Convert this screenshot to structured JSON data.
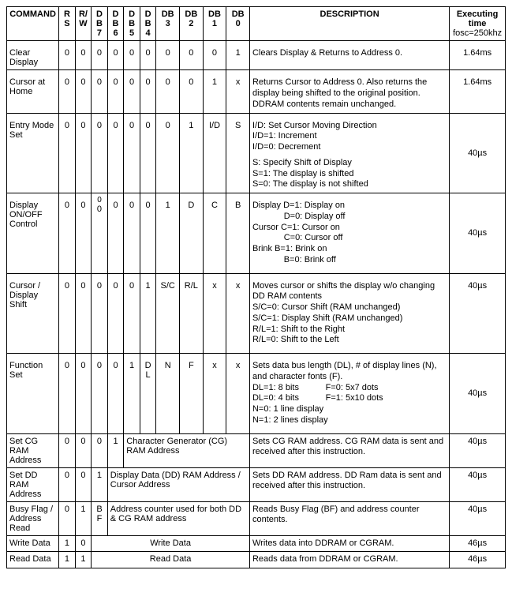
{
  "headers": {
    "command": "COMMAND",
    "rs": "R\nS",
    "rw": "R/\nW",
    "db7": "DB\n7",
    "db6": "DB\n6",
    "db5": "DB\n5",
    "db4": "DB\n4",
    "db3": "DB\n3",
    "db2": "DB\n2",
    "db1": "DB\n1",
    "db0": "DB\n0",
    "description": "DESCRIPTION",
    "executing": "Executing time",
    "fosc": "fosc=250khz"
  },
  "rows": {
    "clear": {
      "cmd": "Clear Display",
      "bits": [
        "0",
        "0",
        "0",
        "0",
        "0",
        "0",
        "0",
        "0",
        "0",
        "1"
      ],
      "desc": "Clears Display & Returns to Address 0.",
      "time": "1.64ms"
    },
    "home": {
      "cmd": "Cursor at Home",
      "bits": [
        "0",
        "0",
        "0",
        "0",
        "0",
        "0",
        "0",
        "0",
        "1",
        "x"
      ],
      "desc": "Returns Cursor to Address 0.  Also returns the display being shifted to the original position.  DDRAM contents remain unchanged.",
      "time": "1.64ms"
    },
    "entry": {
      "cmd": "Entry Mode Set",
      "bits": [
        "0",
        "0",
        "0",
        "0",
        "0",
        "0",
        "0",
        "1",
        "I/D",
        "S"
      ],
      "desc_l1": "I/D: Set Cursor Moving Direction",
      "desc_l2": "I/D=1: Increment",
      "desc_l3": "I/D=0: Decrement",
      "desc_l4": "S: Specify Shift of Display",
      "desc_l5": "S=1: The display is shifted",
      "desc_l6": "S=0: The display is not shifted",
      "time": "40µs"
    },
    "disp": {
      "cmd": "Display ON/OFF Control",
      "bits": [
        "0",
        "0",
        "0",
        "0",
        "0",
        "0",
        "1",
        "D",
        "C",
        "B"
      ],
      "db7top": "0",
      "desc_l1": "Display  D=1: Display on",
      "desc_l2": "             D=0: Display off",
      "desc_l3": "Cursor   C=1: Cursor on",
      "desc_l4": "             C=0: Cursor off",
      "desc_l5": "Brink     B=1: Brink on",
      "desc_l6": "             B=0: Brink off",
      "time": "40µs"
    },
    "shift": {
      "cmd": "Cursor / Display Shift",
      "bits": [
        "0",
        "0",
        "0",
        "0",
        "0",
        "1",
        "S/C",
        "R/L",
        "x",
        "x"
      ],
      "desc_l1": "Moves cursor or shifts the display w/o changing DD RAM contents",
      "desc_l2": "S/C=0: Cursor Shift (RAM unchanged)",
      "desc_l3": "S/C=1: Display Shift (RAM unchanged)",
      "desc_l4": "R/L=1: Shift to the Right",
      "desc_l5": "R/L=0: Shift to the Left",
      "time": "40µs"
    },
    "func": {
      "cmd": "Function Set",
      "bits": [
        "0",
        "0",
        "0",
        "0",
        "1",
        "DL",
        "N",
        "F",
        "x",
        "x"
      ],
      "desc_l1": "Sets data bus length (DL), # of display lines (N), and character fonts (F).",
      "desc_l2": "DL=1: 8 bits           F=0: 5x7 dots",
      "desc_l3": "DL=0: 4 bits           F=1: 5x10 dots",
      "desc_l4": "N=0: 1 line display",
      "desc_l5": "N=1: 2 lines display",
      "time": "40µs"
    },
    "setcg": {
      "cmd": "Set CG RAM Address",
      "rs": "0",
      "rw": "0",
      "db7": "0",
      "db6": "1",
      "merged": "Character Generator (CG) RAM Address",
      "desc": "Sets CG RAM address. CG RAM data is sent and received after this instruction.",
      "time": "40µs"
    },
    "setdd": {
      "cmd": "Set DD RAM Address",
      "rs": "0",
      "rw": "0",
      "db7": "1",
      "merged": "Display Data (DD) RAM Address / Cursor Address",
      "desc": "Sets DD RAM address. DD Ram data is sent and received after this instruction.",
      "time": "40µs"
    },
    "busy": {
      "cmd": "Busy Flag / Address Read",
      "rs": "0",
      "rw": "1",
      "db7": "B\nF",
      "merged": "Address counter used for both  DD & CG RAM address",
      "desc": "Reads Busy Flag (BF) and address counter contents.",
      "time": "40µs"
    },
    "write": {
      "cmd": "Write Data",
      "rs": "1",
      "rw": "0",
      "merged": "Write Data",
      "desc": "Writes data into DDRAM or CGRAM.",
      "time": "46µs"
    },
    "read": {
      "cmd": "Read Data",
      "rs": "1",
      "rw": "1",
      "merged": "Read Data",
      "desc": "Reads data from DDRAM or CGRAM.",
      "time": "46µs"
    }
  },
  "style": {
    "border_color": "#000000",
    "background": "#ffffff",
    "font_size_body": 11,
    "font_family": "Arial"
  }
}
